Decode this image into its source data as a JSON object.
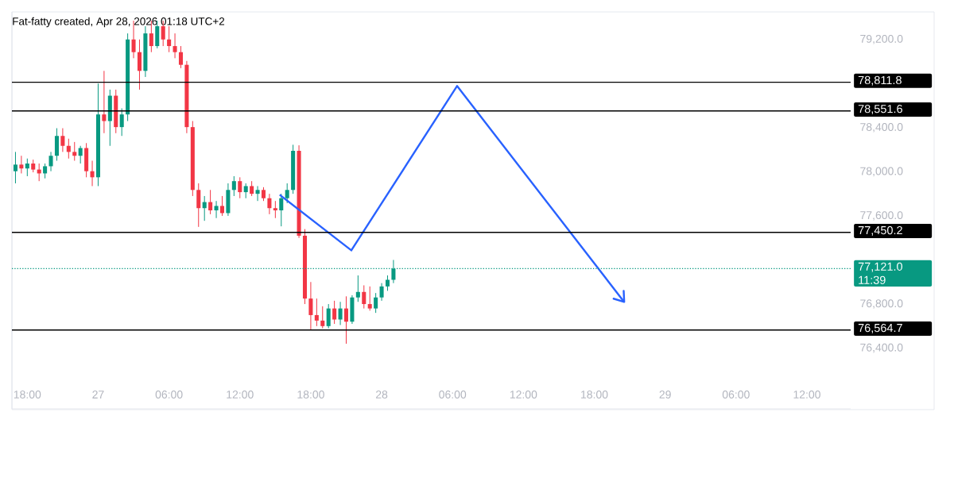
{
  "chart_data": {
    "type": "candlestick",
    "title": "Fat-fatty created, Apr 28, 2026 01:18 UTC+2",
    "x": [
      "2026-04-26T17:00",
      "2026-04-26T17:30",
      "2026-04-26T18:00",
      "2026-04-26T18:30",
      "2026-04-26T19:00",
      "2026-04-26T19:30",
      "2026-04-26T20:00",
      "2026-04-26T20:30",
      "2026-04-26T21:00",
      "2026-04-26T21:30",
      "2026-04-26T22:00",
      "2026-04-26T22:30",
      "2026-04-26T23:00",
      "2026-04-26T23:30",
      "2026-04-27T00:00",
      "2026-04-27T00:30",
      "2026-04-27T01:00",
      "2026-04-27T01:30",
      "2026-04-27T02:00",
      "2026-04-27T02:30",
      "2026-04-27T03:00",
      "2026-04-27T03:30",
      "2026-04-27T04:00",
      "2026-04-27T04:30",
      "2026-04-27T05:00",
      "2026-04-27T05:30",
      "2026-04-27T06:00",
      "2026-04-27T06:30",
      "2026-04-27T07:00",
      "2026-04-27T07:30",
      "2026-04-27T08:00",
      "2026-04-27T08:30",
      "2026-04-27T09:00",
      "2026-04-27T09:30",
      "2026-04-27T10:00",
      "2026-04-27T10:30",
      "2026-04-27T11:00",
      "2026-04-27T11:30",
      "2026-04-27T12:00",
      "2026-04-27T12:30",
      "2026-04-27T13:00",
      "2026-04-27T13:30",
      "2026-04-27T14:00",
      "2026-04-27T14:30",
      "2026-04-27T15:00",
      "2026-04-27T15:30",
      "2026-04-27T16:00",
      "2026-04-27T16:30",
      "2026-04-27T17:00",
      "2026-04-27T17:30",
      "2026-04-27T18:00",
      "2026-04-27T18:30",
      "2026-04-27T19:00",
      "2026-04-27T19:30",
      "2026-04-27T20:00",
      "2026-04-27T20:30",
      "2026-04-27T21:00",
      "2026-04-27T21:30",
      "2026-04-27T22:00",
      "2026-04-27T22:30",
      "2026-04-27T23:00",
      "2026-04-27T23:30",
      "2026-04-28T00:00",
      "2026-04-28T00:30",
      "2026-04-28T01:00"
    ],
    "ohlc": [
      [
        78005,
        78180,
        77895,
        78065
      ],
      [
        78065,
        78145,
        77985,
        78030
      ],
      [
        78030,
        78120,
        77960,
        78075
      ],
      [
        78075,
        78110,
        77995,
        78020
      ],
      [
        78020,
        78075,
        77915,
        77985
      ],
      [
        77985,
        78075,
        77940,
        78050
      ],
      [
        78050,
        78180,
        78005,
        78145
      ],
      [
        78145,
        78395,
        78100,
        78325
      ],
      [
        78325,
        78395,
        78180,
        78235
      ],
      [
        78235,
        78300,
        78120,
        78180
      ],
      [
        78180,
        78270,
        78100,
        78145
      ],
      [
        78145,
        78235,
        78075,
        78215
      ],
      [
        78215,
        78260,
        77950,
        78005
      ],
      [
        78005,
        78100,
        77870,
        77950
      ],
      [
        77950,
        78800,
        77870,
        78520
      ],
      [
        78520,
        78915,
        78350,
        78460
      ],
      [
        78460,
        78745,
        78235,
        78690
      ],
      [
        78690,
        78745,
        78350,
        78405
      ],
      [
        78405,
        78575,
        78325,
        78520
      ],
      [
        78520,
        79255,
        78460,
        79200
      ],
      [
        79200,
        79370,
        79030,
        79085
      ],
      [
        79085,
        79200,
        78745,
        78915
      ],
      [
        78915,
        79320,
        78860,
        79255
      ],
      [
        79255,
        79370,
        79085,
        79140
      ],
      [
        79140,
        79370,
        79120,
        79320
      ],
      [
        79320,
        79370,
        79140,
        79200
      ],
      [
        79200,
        79320,
        79085,
        79140
      ],
      [
        79140,
        79255,
        79030,
        79085
      ],
      [
        79085,
        79140,
        78940,
        78970
      ],
      [
        78970,
        79005,
        78350,
        78405
      ],
      [
        78405,
        78460,
        77780,
        77835
      ],
      [
        77835,
        77895,
        77500,
        77670
      ],
      [
        77670,
        77780,
        77555,
        77725
      ],
      [
        77725,
        77835,
        77615,
        77650
      ],
      [
        77650,
        77735,
        77580,
        77690
      ],
      [
        77690,
        77780,
        77600,
        77625
      ],
      [
        77625,
        77895,
        77600,
        77835
      ],
      [
        77835,
        77960,
        77780,
        77915
      ],
      [
        77915,
        77950,
        77760,
        77815
      ],
      [
        77815,
        77895,
        77760,
        77870
      ],
      [
        77870,
        77915,
        77780,
        77800
      ],
      [
        77800,
        77870,
        77735,
        77835
      ],
      [
        77835,
        77860,
        77735,
        77760
      ],
      [
        77760,
        77800,
        77615,
        77670
      ],
      [
        77670,
        77735,
        77580,
        77650
      ],
      [
        77650,
        77800,
        77505,
        77760
      ],
      [
        77760,
        77895,
        77715,
        77835
      ],
      [
        77835,
        78245,
        77800,
        78190
      ],
      [
        78190,
        78240,
        77400,
        77420
      ],
      [
        77420,
        77480,
        76800,
        76850
      ],
      [
        76850,
        77000,
        76565,
        76700
      ],
      [
        76700,
        76850,
        76600,
        76650
      ],
      [
        76650,
        76780,
        76580,
        76600
      ],
      [
        76600,
        76800,
        76580,
        76760
      ],
      [
        76760,
        76830,
        76620,
        76660
      ],
      [
        76660,
        76820,
        76610,
        76760
      ],
      [
        76760,
        76870,
        76440,
        76640
      ],
      [
        76640,
        76880,
        76620,
        76860
      ],
      [
        76860,
        77060,
        76820,
        76910
      ],
      [
        76910,
        76970,
        76760,
        76800
      ],
      [
        76800,
        76960,
        76740,
        76760
      ],
      [
        76760,
        76900,
        76720,
        76860
      ],
      [
        76860,
        76990,
        76830,
        76960
      ],
      [
        76960,
        77060,
        76920,
        77020
      ],
      [
        77020,
        77200,
        76990,
        77121
      ]
    ],
    "series": [
      {
        "type": "line",
        "color": "#2962ff",
        "x": [
          "2026-04-27T15:22",
          "2026-04-27T21:26",
          "2026-04-28T06:23",
          "2026-04-28T20:32"
        ],
        "values": [
          77791,
          77287,
          78778,
          76819
        ]
      }
    ],
    "xlim": [
      "2026-04-26T16:42",
      "2026-04-29T15:42"
    ],
    "ylim": [
      75850,
      79450
    ],
    "xticks": [
      {
        "value": "2026-04-26T18:00",
        "label": "18:00"
      },
      {
        "value": "2026-04-27T00:00",
        "label": "27"
      },
      {
        "value": "2026-04-27T06:00",
        "label": "06:00"
      },
      {
        "value": "2026-04-27T12:00",
        "label": "12:00"
      },
      {
        "value": "2026-04-27T18:00",
        "label": "18:00"
      },
      {
        "value": "2026-04-28T00:00",
        "label": "28"
      },
      {
        "value": "2026-04-28T06:00",
        "label": "06:00"
      },
      {
        "value": "2026-04-28T12:00",
        "label": "12:00"
      },
      {
        "value": "2026-04-28T18:00",
        "label": "18:00"
      },
      {
        "value": "2026-04-29T00:00",
        "label": "29"
      },
      {
        "value": "2026-04-29T06:00",
        "label": "06:00"
      },
      {
        "value": "2026-04-29T12:00",
        "label": "12:00"
      }
    ],
    "yticks": [
      {
        "value": 76400,
        "label": "76,400.0"
      },
      {
        "value": 76800,
        "label": "76,800.0"
      },
      {
        "value": 77600,
        "label": "77,600.0"
      },
      {
        "value": 78000,
        "label": "78,000.0"
      },
      {
        "value": 78400,
        "label": "78,400.0"
      },
      {
        "value": 79200,
        "label": "79,200.0"
      }
    ],
    "ref_lines": [
      {
        "axis": "y",
        "value": 78811.8,
        "label": "78,811.8",
        "color": "#000000",
        "line_style": "solid"
      },
      {
        "axis": "y",
        "value": 78551.6,
        "label": "78,551.6",
        "color": "#000000",
        "line_style": "solid"
      },
      {
        "axis": "y",
        "value": 77450.2,
        "label": "77,450.2",
        "color": "#000000",
        "line_style": "solid"
      },
      {
        "axis": "y",
        "value": 76564.7,
        "label": "76,564.7",
        "color": "#000000",
        "line_style": "solid"
      },
      {
        "axis": "y",
        "value": 77121.0,
        "label": "77,121.0",
        "color": "#089981",
        "line_style": "dotted"
      }
    ],
    "annotations": [
      "11:39"
    ],
    "grid": false
  }
}
